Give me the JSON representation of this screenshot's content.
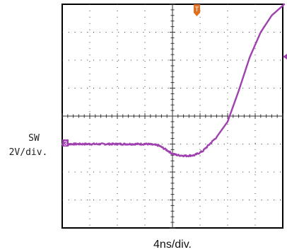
{
  "chart_data": {
    "type": "line",
    "channel": "SW",
    "channel_marker": "3",
    "trigger_marker": "T",
    "vscale": "2V/div.",
    "hscale": "4ns/div.",
    "divisions": {
      "x": 8,
      "y": 8
    },
    "xlim": [
      -16,
      16
    ],
    "ylim": [
      -4,
      4
    ],
    "units": {
      "x": "div",
      "y": "div"
    },
    "grid": true,
    "colors": {
      "trace": "#a040b0",
      "trigger": "#e07020",
      "grid": "#333333"
    },
    "series": [
      {
        "x": [
          -4,
          -2.0,
          -0.9,
          -0.5,
          -0.2,
          0.0,
          0.2,
          0.5,
          0.8,
          1.1,
          1.4,
          1.6,
          2.0,
          2.4,
          2.8,
          3.2,
          3.6,
          4.0,
          4.05
        ],
        "y": [
          -1.0,
          -1.0,
          -1.0,
          -1.05,
          -1.22,
          -1.35,
          -1.4,
          -1.42,
          -1.4,
          -1.25,
          -0.95,
          -0.75,
          -0.2,
          0.9,
          2.1,
          3.0,
          3.6,
          3.95,
          4.0
        ]
      }
    ]
  }
}
